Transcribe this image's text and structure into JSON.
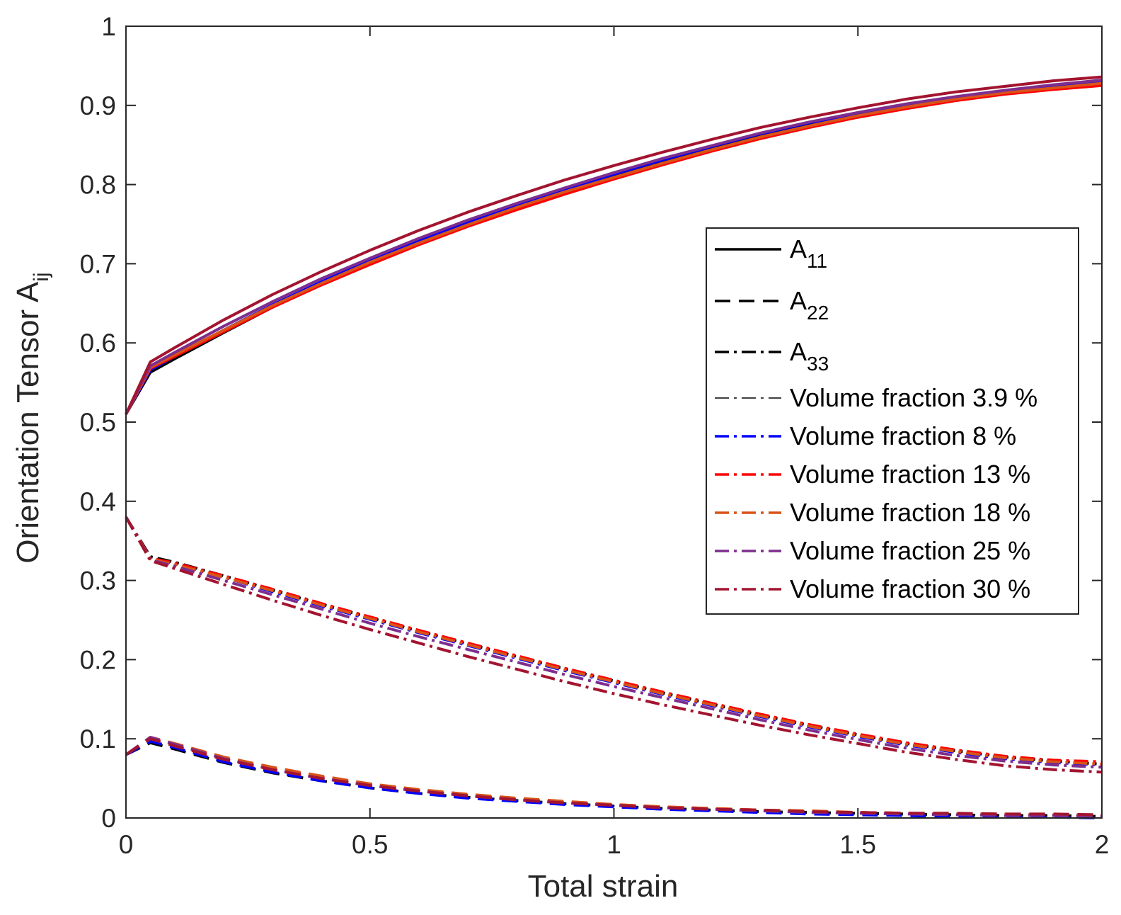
{
  "chart_data": {
    "type": "line",
    "title": "",
    "xlabel": "Total strain",
    "ylabel_main": "Orientation Tensor A",
    "ylabel_sub": "ij",
    "xlim": [
      0,
      2
    ],
    "ylim": [
      0,
      1
    ],
    "xticks": [
      0,
      0.5,
      1,
      1.5,
      2
    ],
    "xtick_labels": [
      "0",
      "0.5",
      "1",
      "1.5",
      "2"
    ],
    "yticks": [
      0,
      0.1,
      0.2,
      0.3,
      0.4,
      0.5,
      0.6,
      0.7,
      0.8,
      0.9,
      1
    ],
    "ytick_labels": [
      "0",
      "0.1",
      "0.2",
      "0.3",
      "0.4",
      "0.5",
      "0.6",
      "0.7",
      "0.8",
      "0.9",
      "1"
    ],
    "grid": false,
    "legend_position": "right-middle",
    "legend": [
      {
        "label": "A",
        "sub": "11",
        "style": "solid",
        "color": "#000000"
      },
      {
        "label": "A",
        "sub": "22",
        "style": "dashed",
        "color": "#000000"
      },
      {
        "label": "A",
        "sub": "33",
        "style": "dashdot",
        "color": "#000000"
      },
      {
        "label": "Volume fraction 3.9 %",
        "sub": "",
        "style": "dashdot-thin",
        "color": "#000000"
      },
      {
        "label": "Volume fraction 8 %",
        "sub": "",
        "style": "dashdot",
        "color": "#0000ff"
      },
      {
        "label": "Volume fraction 13 %",
        "sub": "",
        "style": "dashdot",
        "color": "#ff0000"
      },
      {
        "label": "Volume fraction 18 %",
        "sub": "",
        "style": "dashdot",
        "color": "#d95319"
      },
      {
        "label": "Volume fraction 25 %",
        "sub": "",
        "style": "dashdot",
        "color": "#7e2f8e"
      },
      {
        "label": "Volume fraction 30 %",
        "sub": "",
        "style": "dashdot",
        "color": "#a2142f"
      }
    ],
    "x": [
      0,
      0.05,
      0.1,
      0.2,
      0.3,
      0.4,
      0.5,
      0.6,
      0.7,
      0.8,
      0.9,
      1.0,
      1.1,
      1.2,
      1.3,
      1.4,
      1.5,
      1.6,
      1.7,
      1.8,
      1.9,
      2.0
    ],
    "series": [
      {
        "name": "A11 3.9 %",
        "component": "A11",
        "color": "#000000",
        "values": [
          0.51,
          0.563,
          0.58,
          0.613,
          0.645,
          0.674,
          0.701,
          0.726,
          0.749,
          0.771,
          0.791,
          0.81,
          0.828,
          0.845,
          0.861,
          0.875,
          0.888,
          0.899,
          0.909,
          0.917,
          0.924,
          0.93
        ]
      },
      {
        "name": "A11 8 %",
        "component": "A11",
        "color": "#0000ff",
        "values": [
          0.51,
          0.566,
          0.583,
          0.616,
          0.648,
          0.677,
          0.704,
          0.729,
          0.752,
          0.774,
          0.794,
          0.813,
          0.831,
          0.848,
          0.864,
          0.878,
          0.89,
          0.901,
          0.91,
          0.918,
          0.925,
          0.931
        ]
      },
      {
        "name": "A11 13 %",
        "component": "A11",
        "color": "#ff0000",
        "values": [
          0.51,
          0.568,
          0.583,
          0.614,
          0.645,
          0.673,
          0.699,
          0.724,
          0.747,
          0.768,
          0.788,
          0.807,
          0.825,
          0.842,
          0.858,
          0.872,
          0.885,
          0.896,
          0.906,
          0.914,
          0.92,
          0.925
        ]
      },
      {
        "name": "A11 18 %",
        "component": "A11",
        "color": "#d95319",
        "values": [
          0.51,
          0.569,
          0.585,
          0.616,
          0.647,
          0.675,
          0.702,
          0.726,
          0.749,
          0.771,
          0.791,
          0.809,
          0.827,
          0.844,
          0.86,
          0.874,
          0.887,
          0.898,
          0.908,
          0.916,
          0.922,
          0.928
        ]
      },
      {
        "name": "A11 25 %",
        "component": "A11",
        "color": "#7e2f8e",
        "values": [
          0.51,
          0.571,
          0.588,
          0.621,
          0.652,
          0.681,
          0.707,
          0.732,
          0.755,
          0.776,
          0.796,
          0.815,
          0.833,
          0.849,
          0.865,
          0.879,
          0.891,
          0.902,
          0.911,
          0.919,
          0.926,
          0.932
        ]
      },
      {
        "name": "A11 30 %",
        "component": "A11",
        "color": "#a2142f",
        "values": [
          0.51,
          0.576,
          0.594,
          0.629,
          0.661,
          0.69,
          0.717,
          0.742,
          0.765,
          0.786,
          0.806,
          0.824,
          0.841,
          0.857,
          0.872,
          0.885,
          0.897,
          0.908,
          0.917,
          0.924,
          0.931,
          0.936
        ]
      },
      {
        "name": "A22 3.9 %",
        "component": "A22",
        "color": "#000000",
        "values": [
          0.08,
          0.095,
          0.087,
          0.07,
          0.057,
          0.047,
          0.038,
          0.031,
          0.026,
          0.022,
          0.018,
          0.015,
          0.012,
          0.01,
          0.008,
          0.007,
          0.006,
          0.005,
          0.004,
          0.003,
          0.003,
          0.002
        ]
      },
      {
        "name": "A22 8 %",
        "component": "A22",
        "color": "#0000ff",
        "values": [
          0.08,
          0.097,
          0.089,
          0.071,
          0.058,
          0.047,
          0.038,
          0.031,
          0.025,
          0.021,
          0.017,
          0.014,
          0.011,
          0.009,
          0.007,
          0.005,
          0.004,
          0.003,
          0.002,
          0.001,
          0.001,
          0.0
        ]
      },
      {
        "name": "A22 13 %",
        "component": "A22",
        "color": "#ff0000",
        "values": [
          0.08,
          0.101,
          0.093,
          0.076,
          0.063,
          0.052,
          0.043,
          0.035,
          0.029,
          0.024,
          0.02,
          0.017,
          0.014,
          0.012,
          0.01,
          0.008,
          0.007,
          0.006,
          0.005,
          0.004,
          0.004,
          0.003
        ]
      },
      {
        "name": "A22 18 %",
        "component": "A22",
        "color": "#d95319",
        "values": [
          0.08,
          0.102,
          0.094,
          0.077,
          0.064,
          0.053,
          0.043,
          0.036,
          0.03,
          0.025,
          0.021,
          0.017,
          0.014,
          0.012,
          0.01,
          0.009,
          0.007,
          0.006,
          0.005,
          0.005,
          0.004,
          0.004
        ]
      },
      {
        "name": "A22 25 %",
        "component": "A22",
        "color": "#7e2f8e",
        "values": [
          0.08,
          0.102,
          0.093,
          0.075,
          0.061,
          0.05,
          0.041,
          0.034,
          0.028,
          0.023,
          0.019,
          0.016,
          0.013,
          0.011,
          0.009,
          0.007,
          0.006,
          0.005,
          0.004,
          0.003,
          0.003,
          0.002
        ]
      },
      {
        "name": "A22 30 %",
        "component": "A22",
        "color": "#a2142f",
        "values": [
          0.08,
          0.1,
          0.091,
          0.074,
          0.061,
          0.05,
          0.041,
          0.034,
          0.028,
          0.023,
          0.019,
          0.016,
          0.013,
          0.011,
          0.01,
          0.008,
          0.007,
          0.006,
          0.006,
          0.005,
          0.005,
          0.004
        ]
      },
      {
        "name": "A33 3.9 %",
        "component": "A33",
        "color": "#000000",
        "values": [
          0.38,
          0.33,
          0.323,
          0.306,
          0.288,
          0.27,
          0.253,
          0.236,
          0.22,
          0.204,
          0.188,
          0.173,
          0.158,
          0.144,
          0.13,
          0.117,
          0.105,
          0.094,
          0.085,
          0.077,
          0.072,
          0.068
        ]
      },
      {
        "name": "A33 8 %",
        "component": "A33",
        "color": "#0000ff",
        "values": [
          0.38,
          0.328,
          0.321,
          0.304,
          0.286,
          0.268,
          0.251,
          0.234,
          0.218,
          0.202,
          0.186,
          0.171,
          0.156,
          0.142,
          0.128,
          0.115,
          0.103,
          0.092,
          0.083,
          0.075,
          0.07,
          0.067
        ]
      },
      {
        "name": "A33 13 %",
        "component": "A33",
        "color": "#ff0000",
        "values": [
          0.38,
          0.328,
          0.322,
          0.306,
          0.289,
          0.271,
          0.254,
          0.237,
          0.221,
          0.205,
          0.189,
          0.174,
          0.159,
          0.145,
          0.131,
          0.118,
          0.106,
          0.095,
          0.086,
          0.078,
          0.073,
          0.071
        ]
      },
      {
        "name": "A33 18 %",
        "component": "A33",
        "color": "#d95319",
        "values": [
          0.38,
          0.327,
          0.32,
          0.304,
          0.287,
          0.269,
          0.252,
          0.235,
          0.219,
          0.203,
          0.187,
          0.172,
          0.157,
          0.143,
          0.129,
          0.116,
          0.104,
          0.093,
          0.084,
          0.076,
          0.071,
          0.068
        ]
      },
      {
        "name": "A33 25 %",
        "component": "A33",
        "color": "#7e2f8e",
        "values": [
          0.38,
          0.326,
          0.318,
          0.3,
          0.282,
          0.264,
          0.246,
          0.229,
          0.213,
          0.197,
          0.181,
          0.166,
          0.152,
          0.138,
          0.124,
          0.111,
          0.099,
          0.088,
          0.079,
          0.072,
          0.067,
          0.064
        ]
      },
      {
        "name": "A33 30 %",
        "component": "A33",
        "color": "#a2142f",
        "values": [
          0.38,
          0.325,
          0.315,
          0.295,
          0.275,
          0.256,
          0.238,
          0.221,
          0.204,
          0.188,
          0.172,
          0.157,
          0.143,
          0.13,
          0.117,
          0.105,
          0.094,
          0.083,
          0.074,
          0.066,
          0.061,
          0.058
        ]
      }
    ]
  }
}
